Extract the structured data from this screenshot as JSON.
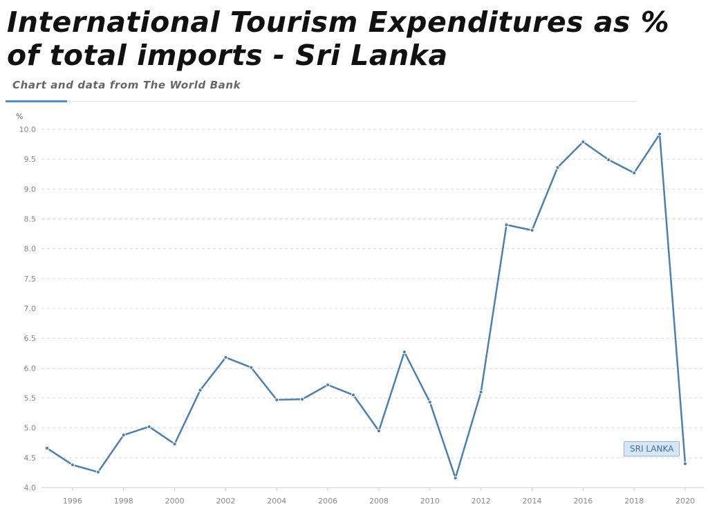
{
  "header": {
    "title": "International Tourism Expenditures as % of total imports - Sri Lanka",
    "subtitle": "Chart and data from The World Bank"
  },
  "chart_data": {
    "type": "line",
    "title": "International Tourism Expenditures as % of total imports - Sri Lanka",
    "ylabel": "%",
    "xlabel": "",
    "ylim": [
      4.0,
      10.0
    ],
    "xlim": [
      1995,
      2020
    ],
    "y_ticks": [
      "4.0",
      "4.5",
      "5.0",
      "5.5",
      "6.0",
      "6.5",
      "7.0",
      "7.5",
      "8.0",
      "8.5",
      "9.0",
      "9.5",
      "10.0"
    ],
    "x_ticks": [
      "1996",
      "1998",
      "2000",
      "2002",
      "2004",
      "2006",
      "2008",
      "2010",
      "2012",
      "2014",
      "2016",
      "2018",
      "2020"
    ],
    "grid": true,
    "x": [
      1995,
      1996,
      1997,
      1998,
      1999,
      2000,
      2001,
      2002,
      2003,
      2004,
      2005,
      2006,
      2007,
      2008,
      2009,
      2010,
      2011,
      2012,
      2013,
      2014,
      2015,
      2016,
      2017,
      2018,
      2019,
      2020
    ],
    "series": [
      {
        "name": "SRI LANKA",
        "color": "#4a7fb3",
        "values": [
          4.66,
          4.38,
          4.26,
          4.88,
          5.02,
          4.73,
          5.63,
          6.18,
          6.01,
          5.47,
          5.48,
          5.72,
          5.55,
          4.95,
          6.27,
          5.43,
          4.16,
          5.6,
          8.4,
          8.31,
          9.36,
          9.79,
          9.49,
          9.27,
          9.92,
          4.4
        ]
      }
    ]
  }
}
